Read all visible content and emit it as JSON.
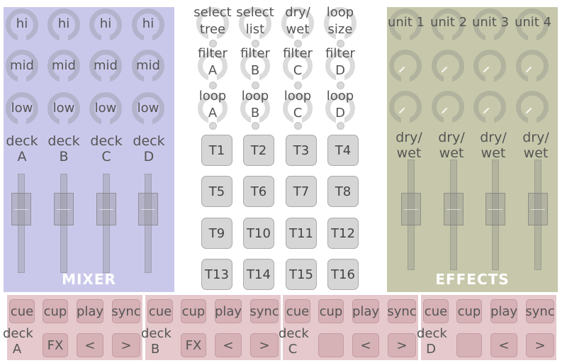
{
  "mixer": {
    "title": "MIXER",
    "hi": [
      "hi",
      "hi",
      "hi",
      "hi"
    ],
    "mid": [
      "mid",
      "mid",
      "mid",
      "mid"
    ],
    "low": [
      "low",
      "low",
      "low",
      "low"
    ],
    "decks": [
      {
        "line1": "deck",
        "line2": "A"
      },
      {
        "line1": "deck",
        "line2": "B"
      },
      {
        "line1": "deck",
        "line2": "C"
      },
      {
        "line1": "deck",
        "line2": "D"
      }
    ]
  },
  "center": {
    "row1": [
      {
        "line1": "select",
        "line2": "tree"
      },
      {
        "line1": "select",
        "line2": "list"
      },
      {
        "line1": "dry/",
        "line2": "wet"
      },
      {
        "line1": "loop",
        "line2": "size"
      }
    ],
    "row2": [
      {
        "line1": "filter",
        "line2": "A"
      },
      {
        "line1": "filter",
        "line2": "B"
      },
      {
        "line1": "filter",
        "line2": "C"
      },
      {
        "line1": "filter",
        "line2": "D"
      }
    ],
    "row3": [
      {
        "line1": "loop",
        "line2": "A"
      },
      {
        "line1": "loop",
        "line2": "B"
      },
      {
        "line1": "loop",
        "line2": "C"
      },
      {
        "line1": "loop",
        "line2": "D"
      }
    ],
    "pads": [
      "T1",
      "T2",
      "T3",
      "T4",
      "T5",
      "T6",
      "T7",
      "T8",
      "T9",
      "T10",
      "T11",
      "T12",
      "T13",
      "T14",
      "T15",
      "T16"
    ]
  },
  "effects": {
    "title": "EFFECTS",
    "units": [
      "unit 1",
      "unit 2",
      "unit 3",
      "unit 4"
    ],
    "drywet": [
      {
        "line1": "dry/",
        "line2": "wet"
      },
      {
        "line1": "dry/",
        "line2": "wet"
      },
      {
        "line1": "dry/",
        "line2": "wet"
      },
      {
        "line1": "dry/",
        "line2": "wet"
      }
    ]
  },
  "decks": [
    {
      "cue": "cue",
      "cup": "cup",
      "play": "play",
      "sync": "sync",
      "line1": "deck",
      "line2": "A",
      "fx": "FX",
      "prev": "<",
      "next": ">"
    },
    {
      "cue": "cue",
      "cup": "cup",
      "play": "play",
      "sync": "sync",
      "line1": "deck",
      "line2": "B",
      "fx": "FX",
      "prev": "<",
      "next": ">"
    },
    {
      "cue": "cue",
      "cup": "cup",
      "play": "play",
      "sync": "sync",
      "line1": "deck",
      "line2": "C",
      "fx": "",
      "prev": "<",
      "next": ">"
    },
    {
      "cue": "cue",
      "cup": "cup",
      "play": "play",
      "sync": "sync",
      "line1": "deck",
      "line2": "D",
      "fx": "",
      "prev": "<",
      "next": ">"
    }
  ],
  "colors": {
    "mixer_bg": "#cac8ea",
    "effects_bg": "#c7c8ab",
    "deck_bg": "#e5c9cc",
    "deck_button": "#d6b1b5",
    "pad_button": "#d6d6d6"
  }
}
